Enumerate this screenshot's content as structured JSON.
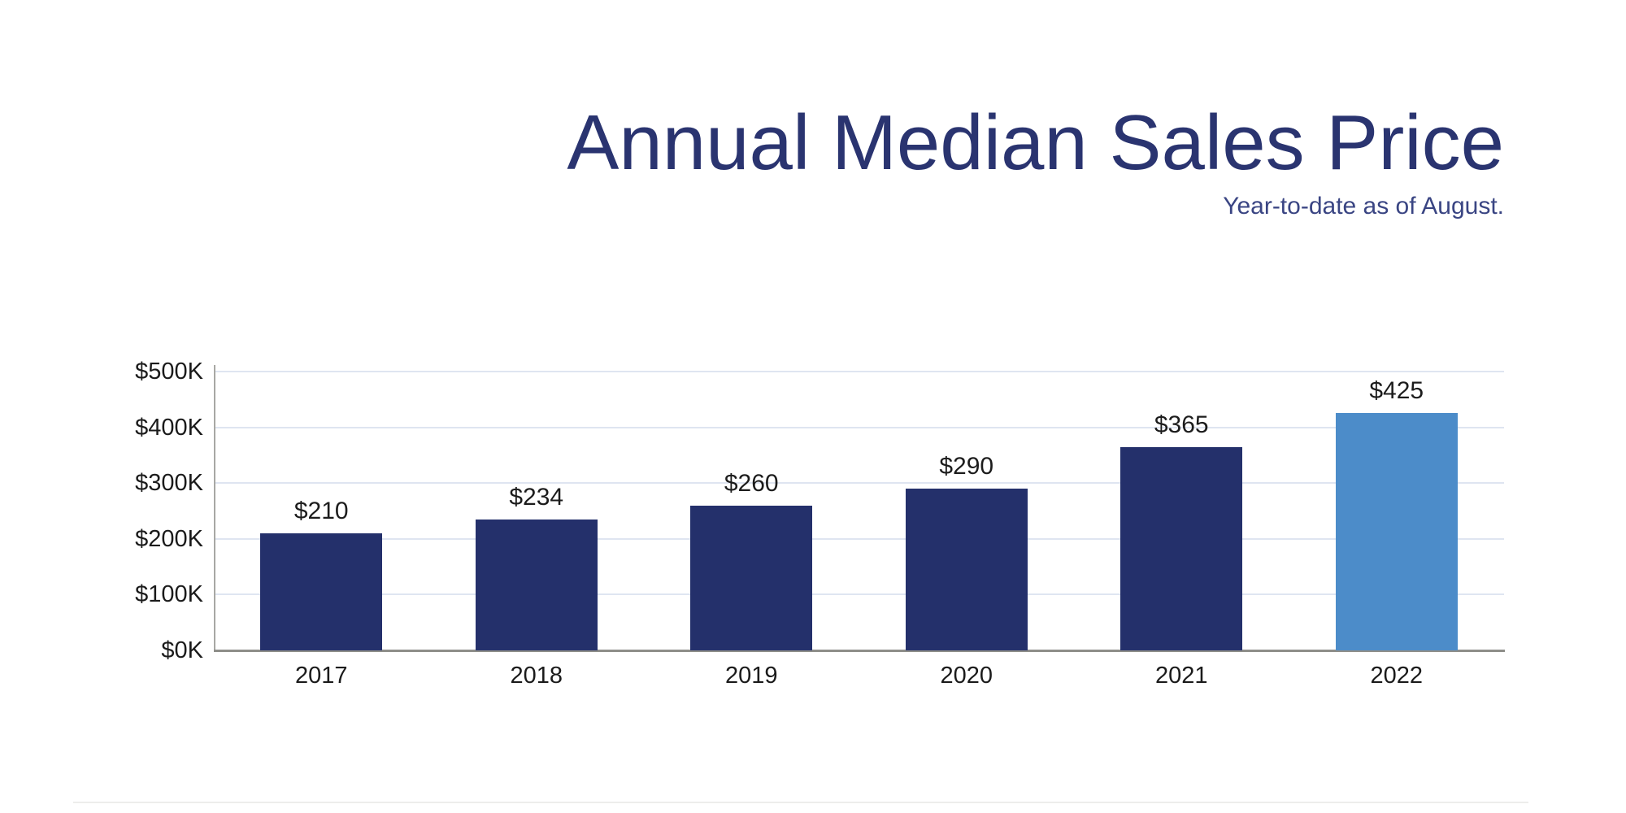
{
  "chart_data": {
    "type": "bar",
    "title": "Annual Median Sales Price",
    "subtitle": "Year-to-date as of August.",
    "categories": [
      "2017",
      "2018",
      "2019",
      "2020",
      "2021",
      "2022"
    ],
    "values": [
      210,
      234,
      260,
      290,
      365,
      425
    ],
    "value_labels": [
      "$210",
      "$234",
      "$260",
      "$290",
      "$365",
      "$425"
    ],
    "ytick_labels": [
      "$0K",
      "$100K",
      "$200K",
      "$300K",
      "$400K",
      "$500K"
    ],
    "ylim": [
      0,
      500
    ],
    "ytick_interval": 100,
    "grid": "horizontal",
    "legend": "none",
    "xlabel": "",
    "ylabel": "",
    "bar_colors": [
      "#24306b",
      "#24306b",
      "#24306b",
      "#24306b",
      "#24306b",
      "#4c8cc9"
    ],
    "default_bar_color": "#24306b",
    "highlight_bar_color": "#4c8cc9",
    "highlighted_category": "2022",
    "title_color": "#2a3470",
    "subtitle_color": "#3a4583",
    "value_label_color": "#1c1c1c",
    "tick_label_color": "#1b1b1b",
    "axis_color": "#8e8e89",
    "gridline_color": "#dfe5f1"
  }
}
